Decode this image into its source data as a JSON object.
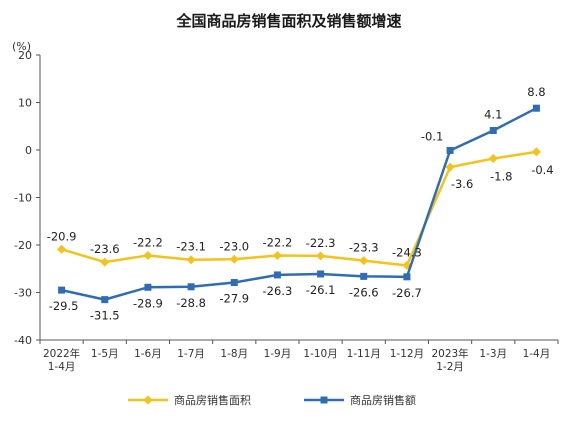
{
  "chart_data": {
    "type": "line",
    "title": "全国商品房销售面积及销售额增速",
    "unit": "(%)",
    "ylim": [
      -40,
      20
    ],
    "yticks": [
      "20",
      "10",
      "0",
      "-10",
      "-20",
      "-30",
      "-40"
    ],
    "ytick_values": [
      20,
      10,
      0,
      -10,
      -20,
      -30,
      -40
    ],
    "categories": [
      [
        "2022年",
        "1-4月"
      ],
      [
        "1-5月"
      ],
      [
        "1-6月"
      ],
      [
        "1-7月"
      ],
      [
        "1-8月"
      ],
      [
        "1-9月"
      ],
      [
        "1-10月"
      ],
      [
        "1-11月"
      ],
      [
        "1-12月"
      ],
      [
        "2023年",
        "1-2月"
      ],
      [
        "1-3月"
      ],
      [
        "1-4月"
      ]
    ],
    "series": [
      {
        "name": "商品房销售面积",
        "color": "#F5C219",
        "marker": "diamond",
        "values": [
          -20.9,
          -23.6,
          -22.2,
          -23.1,
          -23.0,
          -22.2,
          -22.3,
          -23.3,
          -24.3,
          -3.6,
          -1.8,
          -0.4
        ],
        "labels": [
          "-20.9",
          "-23.6",
          "-22.2",
          "-23.1",
          "-23.0",
          "-22.2",
          "-22.3",
          "-23.3",
          "-24.3",
          "-3.6",
          "-1.8",
          "-0.4"
        ]
      },
      {
        "name": "商品房销售额",
        "color": "#2E6DB6",
        "marker": "square",
        "values": [
          -29.5,
          -31.5,
          -28.9,
          -28.8,
          -27.9,
          -26.3,
          -26.1,
          -26.6,
          -26.7,
          -0.1,
          4.1,
          8.8
        ],
        "labels": [
          "-29.5",
          "-31.5",
          "-28.9",
          "-28.8",
          "-27.9",
          "-26.3",
          "-26.1",
          "-26.6",
          "-26.7",
          "-0.1",
          "4.1",
          "8.8"
        ]
      }
    ],
    "grid": false,
    "legend": "bottom"
  }
}
